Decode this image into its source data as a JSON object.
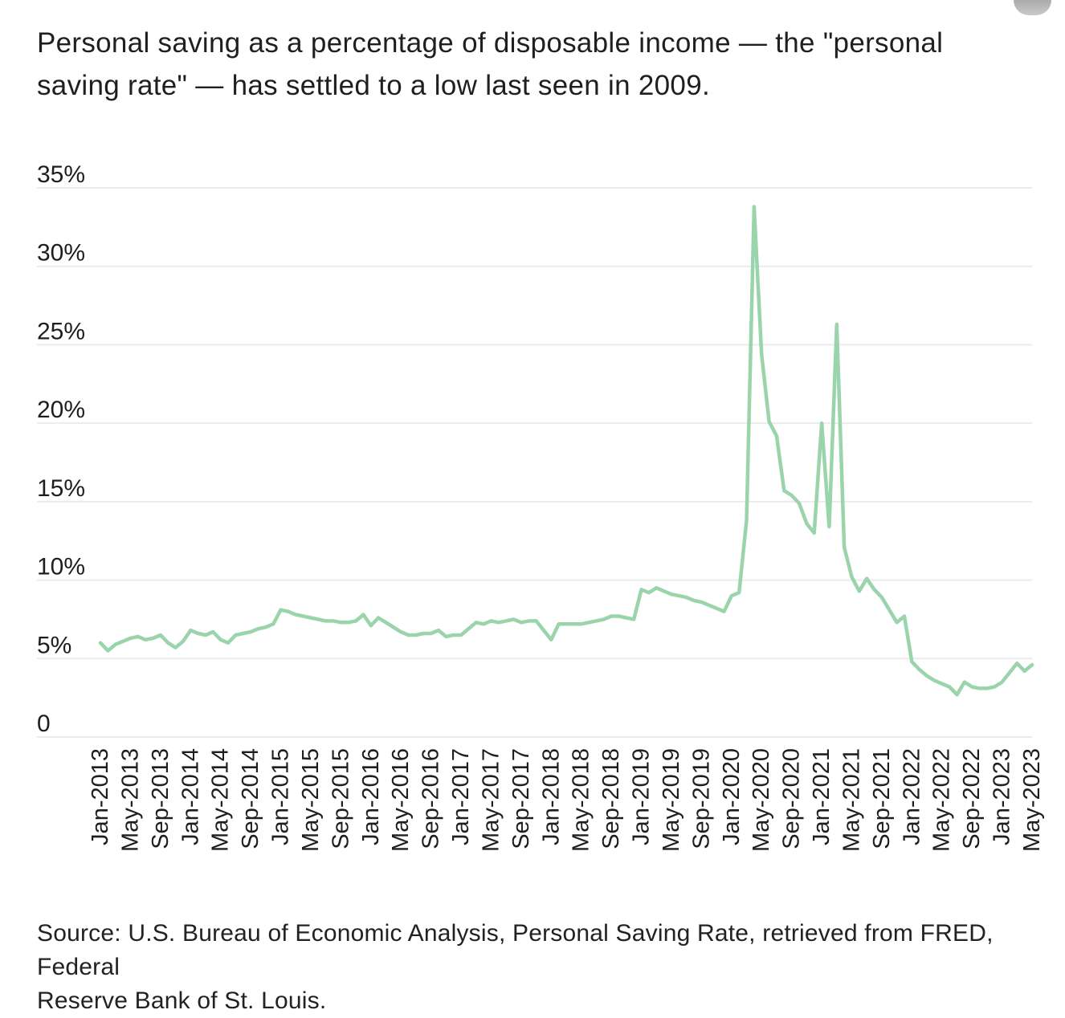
{
  "title": {
    "lines": [
      "Personal saving as a percentage of disposable income — the \"personal",
      "saving rate\" — has settled to a low last seen in 2009."
    ],
    "text": "Personal saving as a percentage of disposable income — the \"personal saving rate\" — has settled to a low last seen in 2009."
  },
  "source": {
    "lines": [
      "Source: U.S. Bureau of Economic Analysis, Personal Saving Rate, retrieved from FRED, Federal",
      "Reserve Bank of St. Louis."
    ]
  },
  "scroll_pill": {
    "color": "#b2b0b0"
  },
  "colors": {
    "line": "#9ad4ab",
    "grid": "#ececec",
    "text": "#1e1e1e",
    "background": "#ffffff"
  },
  "chart_data": {
    "type": "line",
    "title": "",
    "xlabel": "",
    "ylabel": "",
    "unit": "percent",
    "frequency": "monthly",
    "x_start": "Jan-2013",
    "x_end": "May-2023",
    "x_tick_every": 4,
    "x_tick_labels": [
      "Jan-2013",
      "May-2013",
      "Sep-2013",
      "Jan-2014",
      "May-2014",
      "Sep-2014",
      "Jan-2015",
      "May-2015",
      "Sep-2015",
      "Jan-2016",
      "May-2016",
      "Sep-2016",
      "Jan-2017",
      "May-2017",
      "Sep-2017",
      "Jan-2018",
      "May-2018",
      "Sep-2018",
      "Jan-2019",
      "May-2019",
      "Sep-2019",
      "Jan-2020",
      "May-2020",
      "Sep-2020",
      "Jan-2021",
      "May-2021",
      "Sep-2021",
      "Jan-2022",
      "May-2022",
      "Sep-2022",
      "Jan-2023",
      "May-2023"
    ],
    "y_ticks": [
      {
        "label": "35%",
        "value": 35
      },
      {
        "label": "30%",
        "value": 30
      },
      {
        "label": "25%",
        "value": 25
      },
      {
        "label": "20%",
        "value": 20
      },
      {
        "label": "15%",
        "value": 15
      },
      {
        "label": "10%",
        "value": 10
      },
      {
        "label": "5%",
        "value": 5
      },
      {
        "label": "0",
        "value": 0
      }
    ],
    "ylim": [
      0,
      35
    ],
    "grid": true,
    "legend": "none",
    "series": [
      {
        "name": "Personal saving rate",
        "color": "#9ad4ab",
        "values": [
          6.0,
          5.5,
          5.9,
          6.1,
          6.3,
          6.4,
          6.2,
          6.3,
          6.5,
          6.0,
          5.7,
          6.1,
          6.8,
          6.6,
          6.5,
          6.7,
          6.2,
          6.0,
          6.5,
          6.6,
          6.7,
          6.9,
          7.0,
          7.2,
          8.1,
          8.0,
          7.8,
          7.7,
          7.6,
          7.5,
          7.4,
          7.4,
          7.3,
          7.3,
          7.4,
          7.8,
          7.1,
          7.6,
          7.3,
          7.0,
          6.7,
          6.5,
          6.5,
          6.6,
          6.6,
          6.8,
          6.4,
          6.5,
          6.5,
          6.9,
          7.3,
          7.2,
          7.4,
          7.3,
          7.4,
          7.5,
          7.3,
          7.4,
          7.4,
          6.8,
          6.2,
          7.2,
          7.2,
          7.2,
          7.2,
          7.3,
          7.4,
          7.5,
          7.7,
          7.7,
          7.6,
          7.5,
          9.4,
          9.2,
          9.5,
          9.3,
          9.1,
          9.0,
          8.9,
          8.7,
          8.6,
          8.4,
          8.2,
          8.0,
          9.0,
          9.2,
          13.8,
          33.8,
          24.4,
          20.1,
          19.2,
          15.7,
          15.4,
          14.9,
          13.6,
          13.0,
          20.0,
          13.4,
          26.3,
          12.1,
          10.2,
          9.3,
          10.1,
          9.4,
          8.9,
          8.1,
          7.3,
          7.7,
          4.8,
          4.3,
          3.9,
          3.6,
          3.4,
          3.2,
          2.7,
          3.5,
          3.2,
          3.1,
          3.1,
          3.2,
          3.5,
          4.1,
          4.7,
          4.2,
          4.6
        ]
      }
    ]
  }
}
